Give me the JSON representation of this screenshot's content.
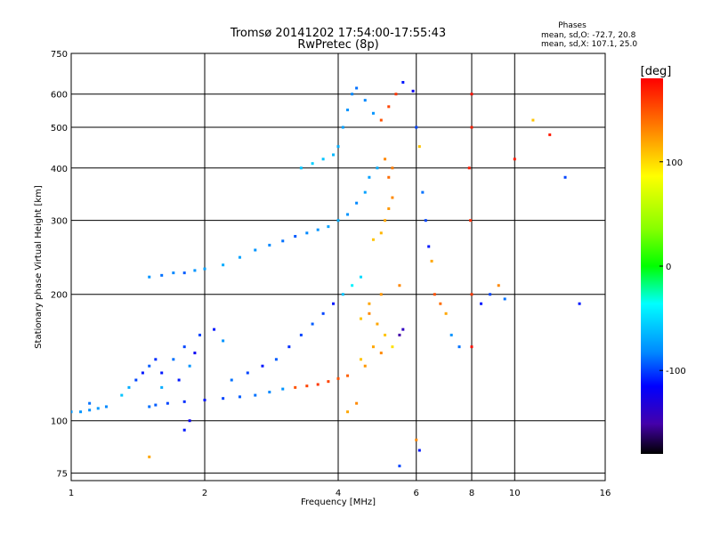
{
  "chart_data": {
    "type": "scatter",
    "title": "Tromsø 20141202 17:54:00-17:55:43",
    "subtitle": "RwPretec (8p)",
    "phase_info": {
      "label": "Phases",
      "line1": "mean, sd,O: -72.7, 20.8",
      "line2": "mean, sd,X: 107.1, 25.0"
    },
    "xlabel": "Frequency [MHz]",
    "ylabel": "Stationary phase Virtual Height [km]",
    "x_scale": "log",
    "y_scale": "log",
    "xlim": [
      1,
      16
    ],
    "ylim": [
      72,
      750
    ],
    "x_ticks": [
      1,
      2,
      4,
      6,
      8,
      10,
      16
    ],
    "y_ticks": [
      75,
      100,
      200,
      300,
      400,
      500,
      600,
      750
    ],
    "grid": true,
    "colorbar": {
      "label": "[deg]",
      "range": [
        -180,
        180
      ],
      "ticks": [
        100,
        0,
        -100
      ]
    },
    "series": [
      {
        "marker": "dot",
        "points": [
          [
            1.0,
            105,
            -80
          ],
          [
            1.05,
            105,
            -80
          ],
          [
            1.1,
            106,
            -82
          ],
          [
            1.15,
            107,
            -78
          ],
          [
            1.2,
            108,
            -85
          ],
          [
            1.1,
            110,
            -90
          ],
          [
            1.3,
            115,
            -60
          ],
          [
            1.35,
            120,
            -70
          ],
          [
            1.4,
            125,
            -100
          ],
          [
            1.45,
            130,
            -110
          ],
          [
            1.5,
            135,
            -95
          ],
          [
            1.55,
            140,
            -105
          ],
          [
            1.6,
            130,
            -110
          ],
          [
            1.7,
            140,
            -90
          ],
          [
            1.8,
            150,
            -100
          ],
          [
            1.6,
            120,
            -70
          ],
          [
            1.75,
            125,
            -110
          ],
          [
            1.85,
            135,
            -80
          ],
          [
            1.9,
            145,
            -120
          ],
          [
            1.95,
            160,
            -100
          ],
          [
            2.1,
            165,
            -110
          ],
          [
            2.2,
            155,
            -80
          ],
          [
            1.5,
            108,
            -90
          ],
          [
            1.55,
            109,
            -95
          ],
          [
            1.65,
            110,
            -100
          ],
          [
            1.8,
            111,
            -105
          ],
          [
            2.0,
            112,
            -110
          ],
          [
            2.2,
            113,
            -100
          ],
          [
            2.4,
            114,
            -95
          ],
          [
            2.6,
            115,
            -90
          ],
          [
            2.8,
            117,
            -85
          ],
          [
            3.0,
            119,
            -80
          ],
          [
            3.2,
            120,
            150
          ],
          [
            3.4,
            121,
            155
          ],
          [
            3.6,
            122,
            160
          ],
          [
            3.8,
            124,
            155
          ],
          [
            4.0,
            126,
            150
          ],
          [
            4.2,
            128,
            145
          ],
          [
            2.3,
            125,
            -90
          ],
          [
            2.5,
            130,
            -100
          ],
          [
            2.7,
            135,
            -110
          ],
          [
            2.9,
            140,
            -95
          ],
          [
            3.1,
            150,
            -105
          ],
          [
            3.3,
            160,
            -100
          ],
          [
            3.5,
            170,
            -95
          ],
          [
            3.7,
            180,
            -100
          ],
          [
            3.9,
            190,
            -110
          ],
          [
            4.1,
            200,
            -60
          ],
          [
            4.3,
            210,
            -40
          ],
          [
            4.5,
            220,
            -50
          ],
          [
            4.7,
            180,
            130
          ],
          [
            4.9,
            170,
            120
          ],
          [
            5.1,
            160,
            110
          ],
          [
            5.3,
            150,
            100
          ],
          [
            4.8,
            150,
            120
          ],
          [
            5.0,
            145,
            130
          ],
          [
            4.5,
            140,
            110
          ],
          [
            4.6,
            135,
            125
          ],
          [
            1.5,
            220,
            -80
          ],
          [
            1.6,
            222,
            -90
          ],
          [
            1.7,
            225,
            -85
          ],
          [
            1.8,
            225,
            -95
          ],
          [
            1.9,
            228,
            -80
          ],
          [
            2.0,
            230,
            -75
          ],
          [
            2.2,
            235,
            -70
          ],
          [
            2.4,
            245,
            -75
          ],
          [
            2.6,
            255,
            -80
          ],
          [
            2.8,
            262,
            -85
          ],
          [
            3.0,
            268,
            -90
          ],
          [
            3.2,
            275,
            -95
          ],
          [
            3.4,
            280,
            -85
          ],
          [
            3.6,
            285,
            -80
          ],
          [
            3.8,
            290,
            -75
          ],
          [
            4.0,
            300,
            -70
          ],
          [
            4.2,
            310,
            -80
          ],
          [
            4.4,
            330,
            -85
          ],
          [
            4.6,
            350,
            -75
          ],
          [
            4.8,
            270,
            110
          ],
          [
            5.0,
            280,
            115
          ],
          [
            5.1,
            300,
            120
          ],
          [
            5.2,
            320,
            125
          ],
          [
            5.3,
            340,
            130
          ],
          [
            5.2,
            380,
            140
          ],
          [
            5.3,
            400,
            135
          ],
          [
            5.1,
            420,
            130
          ],
          [
            4.9,
            400,
            -70
          ],
          [
            4.7,
            380,
            -75
          ],
          [
            3.3,
            400,
            -60
          ],
          [
            3.5,
            410,
            -55
          ],
          [
            3.7,
            420,
            -60
          ],
          [
            3.9,
            430,
            -65
          ],
          [
            4.0,
            450,
            -70
          ],
          [
            4.1,
            500,
            -75
          ],
          [
            4.2,
            550,
            -80
          ],
          [
            4.3,
            600,
            -85
          ],
          [
            4.4,
            620,
            -90
          ],
          [
            4.6,
            580,
            -85
          ],
          [
            4.8,
            540,
            -80
          ],
          [
            5.0,
            520,
            150
          ],
          [
            5.2,
            560,
            155
          ],
          [
            5.4,
            600,
            160
          ],
          [
            5.6,
            640,
            -110
          ],
          [
            5.9,
            610,
            -120
          ],
          [
            6.0,
            500,
            -100
          ],
          [
            6.1,
            450,
            110
          ],
          [
            6.2,
            350,
            -90
          ],
          [
            6.3,
            300,
            -100
          ],
          [
            6.4,
            260,
            -110
          ],
          [
            6.5,
            240,
            120
          ],
          [
            6.6,
            200,
            150
          ],
          [
            6.8,
            190,
            140
          ],
          [
            7.0,
            180,
            120
          ],
          [
            7.2,
            160,
            -80
          ],
          [
            7.5,
            150,
            -90
          ],
          [
            7.9,
            400,
            170
          ],
          [
            7.95,
            300,
            165
          ],
          [
            8.0,
            200,
            160
          ],
          [
            8.0,
            150,
            175
          ],
          [
            8.0,
            500,
            170
          ],
          [
            8.0,
            600,
            175
          ],
          [
            8.4,
            190,
            -110
          ],
          [
            8.8,
            200,
            -100
          ],
          [
            9.2,
            210,
            130
          ],
          [
            9.5,
            195,
            -90
          ],
          [
            10.0,
            420,
            170
          ],
          [
            11.0,
            520,
            110
          ],
          [
            12.0,
            480,
            170
          ],
          [
            13.0,
            380,
            -100
          ],
          [
            14.0,
            190,
            -110
          ],
          [
            5.5,
            160,
            -150
          ],
          [
            5.6,
            165,
            -140
          ],
          [
            6.0,
            90,
            130
          ],
          [
            6.1,
            85,
            -110
          ],
          [
            5.5,
            78,
            -100
          ],
          [
            4.2,
            105,
            120
          ],
          [
            4.4,
            110,
            130
          ],
          [
            1.8,
            95,
            -110
          ],
          [
            1.85,
            100,
            -120
          ],
          [
            1.5,
            82,
            120
          ],
          [
            4.5,
            175,
            110
          ],
          [
            4.7,
            190,
            120
          ],
          [
            5.0,
            200,
            125
          ],
          [
            5.5,
            210,
            130
          ]
        ]
      }
    ]
  }
}
